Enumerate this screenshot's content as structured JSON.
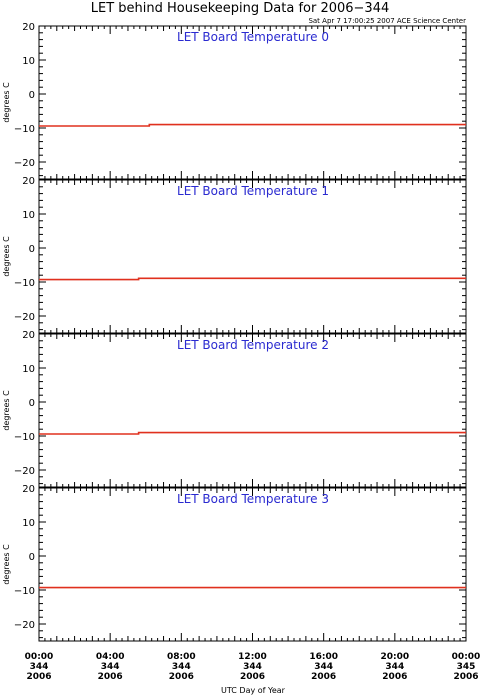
{
  "title": "LET behind Housekeeping Data for 2006−344",
  "subtitle": "Sat Apr  7 17:00:25 2007 ACE Science Center",
  "colors": {
    "series": "#e0301e",
    "panel_title": "#2a2ad0",
    "axes": "#000000"
  },
  "chart_data": [
    {
      "type": "line",
      "title": "LET Board Temperature 0",
      "ylabel": "degrees C",
      "ylim": [
        -25,
        20
      ],
      "yticks": [
        "20",
        "10",
        "0",
        "−10",
        "−20"
      ],
      "xlim": [
        0,
        24
      ],
      "grid": false,
      "series": [
        {
          "x": [
            0,
            6.2,
            6.2,
            24
          ],
          "y": [
            -9.4,
            -9.4,
            -9.0,
            -9.0
          ]
        }
      ]
    },
    {
      "type": "line",
      "title": "LET Board Temperature 1",
      "ylabel": "degrees C",
      "ylim": [
        -25,
        20
      ],
      "yticks": [
        "20",
        "10",
        "0",
        "−10",
        "−20"
      ],
      "xlim": [
        0,
        24
      ],
      "grid": false,
      "series": [
        {
          "x": [
            0,
            5.6,
            5.6,
            24
          ],
          "y": [
            -9.3,
            -9.3,
            -8.9,
            -8.9
          ]
        }
      ]
    },
    {
      "type": "line",
      "title": "LET Board Temperature 2",
      "ylabel": "degrees C",
      "ylim": [
        -25,
        20
      ],
      "yticks": [
        "20",
        "10",
        "0",
        "−10",
        "−20"
      ],
      "xlim": [
        0,
        24
      ],
      "grid": false,
      "series": [
        {
          "x": [
            0,
            5.6,
            5.6,
            24
          ],
          "y": [
            -9.4,
            -9.4,
            -9.0,
            -9.0
          ]
        }
      ]
    },
    {
      "type": "line",
      "title": "LET Board Temperature 3",
      "ylabel": "degrees C",
      "ylim": [
        -25,
        20
      ],
      "yticks": [
        "20",
        "10",
        "0",
        "−10",
        "−20"
      ],
      "xlim": [
        0,
        24
      ],
      "grid": false,
      "series": [
        {
          "x": [
            0,
            24
          ],
          "y": [
            -9.3,
            -9.3
          ]
        }
      ]
    }
  ],
  "x_axis": {
    "label": "UTC Day of Year",
    "ticks": [
      {
        "x": 0,
        "time": "00:00",
        "doy": "344",
        "year": "2006"
      },
      {
        "x": 4,
        "time": "04:00",
        "doy": "344",
        "year": "2006"
      },
      {
        "x": 8,
        "time": "08:00",
        "doy": "344",
        "year": "2006"
      },
      {
        "x": 12,
        "time": "12:00",
        "doy": "344",
        "year": "2006"
      },
      {
        "x": 16,
        "time": "16:00",
        "doy": "344",
        "year": "2006"
      },
      {
        "x": 20,
        "time": "20:00",
        "doy": "344",
        "year": "2006"
      },
      {
        "x": 24,
        "time": "00:00",
        "doy": "345",
        "year": "2006"
      }
    ]
  }
}
